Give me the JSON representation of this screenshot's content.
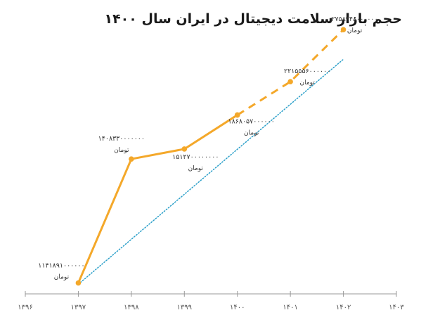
{
  "chart_data": {
    "type": "line",
    "title": "حجم بازار سلامت دیجیتال در ایران سال ۱۴۰۰",
    "xlabel": "",
    "ylabel": "",
    "unit": "تومان",
    "x_ticks": [
      "۱۳۹۶",
      "۱۳۹۷",
      "۱۳۹۸",
      "۱۳۹۹",
      "۱۴۰۰",
      "۱۴۰۱",
      "۱۴۰۲",
      "۱۴۰۳"
    ],
    "x_range": [
      1396,
      1403
    ],
    "y_range": [
      0,
      29000000000000
    ],
    "grid": false,
    "legend": "none",
    "series": [
      {
        "style": "solid",
        "points": [
          {
            "x": 1397,
            "y": 1141891000000,
            "label": "۱۱۴۱۸۹۱۰۰۰۰۰۰"
          },
          {
            "x": 1398,
            "y": 14083300000000,
            "label": "۱۴۰۸۳۳۰۰۰۰۰۰۰"
          },
          {
            "x": 1399,
            "y": 15127000000000,
            "label": "۱۵۱۲۷۰۰۰۰۰۰۰۰"
          },
          {
            "x": 1400,
            "y": 18680570000000,
            "label": "۱۸۶۸۰۵۷۰۰۰۰۰۰"
          }
        ]
      },
      {
        "style": "dashed",
        "points": [
          {
            "x": 1400,
            "y": 18680570000000
          },
          {
            "x": 1401,
            "y": 22155560000000,
            "label": "۲۲۱۵۵۵۶۰۰۰۰۰۰"
          },
          {
            "x": 1402,
            "y": 27589480000000,
            "label": "۲۷۵۸۹۴۸۰۰۰۰۰۰"
          }
        ]
      },
      {
        "style": "dotted-trend",
        "points": [
          {
            "x": 1397,
            "y": 1000000000000
          },
          {
            "x": 1402,
            "y": 24500000000000
          }
        ]
      }
    ],
    "colors": {
      "line": "#f4a82a",
      "trend": "#2a9fc9",
      "axis": "#999999",
      "text": "#333333"
    }
  }
}
